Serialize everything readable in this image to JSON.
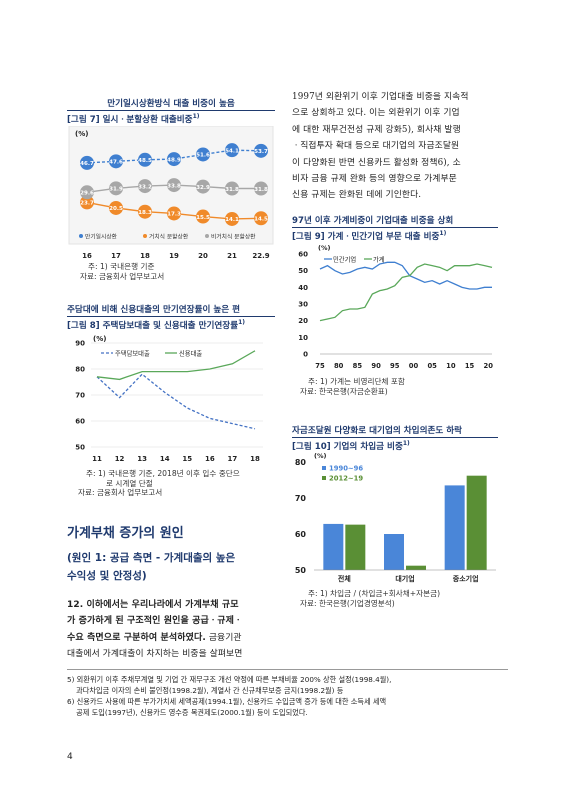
{
  "fig7": {
    "title": "만기일시상환방식 대출 비중이 높음",
    "caption": "[그림 7] 일시ㆍ분할상환 대출비중",
    "caption_sup": "1)",
    "unit": "(%)",
    "legend": [
      "만기일시상환",
      "거치식 분할상환",
      "비거치식 분할상환"
    ],
    "notes": [
      "주: 1) 국내은행 기준",
      "자료: 금융회사 업무보고서"
    ]
  },
  "fig8": {
    "title": "주담대에 비해 신용대출의 만기연장률이 높은 편",
    "caption": "[그림 8] 주택담보대출 및 신용대출 만기연장률",
    "caption_sup": "1)",
    "unit": "(%)",
    "notes": [
      "주: 1) 국내은행 기준, 2018년 이후 입수 중단으",
      "로 시계열 단절",
      "자료: 금융회사 업무보고서"
    ]
  },
  "fig9": {
    "title": "97년 이후 가계비중이 기업대출 비중을 상회",
    "caption": "[그림 9] 가계ㆍ민간기업 부문 대출 비중",
    "caption_sup": "1)",
    "unit": "(%)",
    "notes": [
      "주: 1) 가계는 비영리단체 포함",
      "자료: 한국은행(자금순환표)"
    ]
  },
  "fig10": {
    "title": "자금조달원 다양화로 대기업의 차입의존도 하락",
    "caption": "[그림 10] 기업의 차입금 비중",
    "caption_sup": "1)",
    "unit": "(%)",
    "notes": [
      "주: 1) 차입금 / (차입금+회사채+자본금)",
      "자료: 한국은행(기업경영분석)"
    ]
  },
  "right_paragraph": [
    "1997년 외환위기 이후 기업대출 비중을 지속적",
    "으로 상회하고 있다. 이는 외환위기 이후 기업",
    "에 대한 재무건전성 규제 강화5), 회사채 발행",
    "ㆍ직접투자 확대 등으로 대기업의 자금조달원",
    "이 다양화된 반면 신용카드 활성화 정책6), 소",
    "비자 금융 규제 완화 등의 영향으로 가계부문",
    "신용 규제는 완화된 데에 기인한다."
  ],
  "section": {
    "title": "가계부채 증가의 원인",
    "cause_title": [
      "(원인 1: 공급 측면 - 가계대출의 높은",
      "수익성 및 안정성)"
    ],
    "para_bold": [
      "12. 이하에서는 우리나라에서 가계부채 규모",
      "가 증가하게 된 구조적인 원인을 공급ㆍ규제ㆍ",
      "수요 측면으로 구분하여 분석하였다."
    ],
    "para_tail_first": " 금융기관",
    "para_rest": "대출에서 가계대출이 차지하는 비중을 살펴보면"
  },
  "footnotes": [
    "5) 외환위기 이후 주채무계열 및 기업 간 재무구조 개선 약정에 따른 부채비율 200% 상한 설정(1998.4월),",
    "    과다차입금 이자의 손비 불인정(1998.2월), 계열사 간 신규채무보증 금지(1998.2월) 등",
    "6) 신용카드 사용에 따른 부가가치세 세액공제(1994.1월), 신용카드 수입금액 증가 등에 대한 소득세 세액",
    "    공제 도입(1997년), 신용카드 영수증 복권제도(2000.1월) 등이 도입되었다."
  ],
  "page_number": "4",
  "colors": {
    "fig7_series": [
      "#3f7fd0",
      "#f08a2a",
      "#a7a7a7"
    ],
    "fig8_series": [
      "#4472c4",
      "#5aa85a"
    ],
    "fig9_series": [
      "#3f7fd0",
      "#5aa85a"
    ],
    "fig10_series": [
      "#4a86d8",
      "#5a8f35"
    ],
    "heading": "#1f3a6e"
  },
  "chart_data": [
    {
      "id": "fig7",
      "type": "line",
      "x": [
        "16",
        "17",
        "18",
        "19",
        "20",
        "21",
        "22.9"
      ],
      "series": [
        {
          "name": "만기일시상환",
          "values": [
            46.7,
            47.6,
            48.5,
            48.9,
            51.6,
            54.1,
            53.7
          ]
        },
        {
          "name": "거치식 분할상환",
          "values": [
            23.7,
            20.5,
            18.3,
            17.3,
            15.5,
            14.1,
            14.5
          ]
        },
        {
          "name": "비거치식 분할상환",
          "values": [
            29.6,
            31.9,
            33.2,
            33.8,
            32.9,
            31.8,
            31.8
          ]
        }
      ],
      "ylabel": "(%)",
      "legend_position": "bottom"
    },
    {
      "id": "fig8",
      "type": "line",
      "x": [
        "11",
        "12",
        "13",
        "14",
        "15",
        "16",
        "17",
        "18"
      ],
      "series": [
        {
          "name": "주택담보대출",
          "values": [
            77,
            69,
            78,
            71,
            65,
            61,
            59,
            57
          ]
        },
        {
          "name": "신용대출",
          "values": [
            77,
            76,
            79,
            79,
            79,
            80,
            82,
            87
          ]
        }
      ],
      "ylim": [
        50,
        90
      ],
      "yticks": [
        50,
        60,
        70,
        80,
        90
      ],
      "ylabel": "(%)",
      "legend_position": "top-left"
    },
    {
      "id": "fig9",
      "type": "line",
      "xticks": [
        "75",
        "80",
        "85",
        "90",
        "95",
        "00",
        "05",
        "10",
        "15",
        "20"
      ],
      "x": [
        1975,
        1977,
        1979,
        1981,
        1983,
        1985,
        1987,
        1989,
        1991,
        1993,
        1995,
        1997,
        1999,
        2001,
        2003,
        2005,
        2007,
        2009,
        2011,
        2013,
        2015,
        2017,
        2019,
        2021
      ],
      "series": [
        {
          "name": "민간기업",
          "values": [
            51,
            53,
            50,
            48,
            49,
            51,
            52,
            51,
            54,
            55,
            55,
            53,
            47,
            45,
            43,
            44,
            42,
            44,
            42,
            40,
            39,
            39,
            40,
            40
          ]
        },
        {
          "name": "가계",
          "values": [
            20,
            21,
            22,
            26,
            27,
            27,
            28,
            36,
            38,
            39,
            41,
            46,
            47,
            52,
            54,
            53,
            52,
            50,
            53,
            53,
            53,
            54,
            53,
            52
          ]
        }
      ],
      "ylim": [
        0,
        60
      ],
      "yticks": [
        0,
        10,
        20,
        30,
        40,
        50,
        60
      ],
      "ylabel": "(%)",
      "legend_position": "top-left"
    },
    {
      "id": "fig10",
      "type": "bar",
      "categories": [
        "전체",
        "대기업",
        "중소기업"
      ],
      "series": [
        {
          "name": "1990~96",
          "values": [
            62.8,
            60.0,
            73.5
          ]
        },
        {
          "name": "2012~19",
          "values": [
            62.6,
            51.2,
            76.2
          ]
        }
      ],
      "ylim": [
        50,
        80
      ],
      "yticks": [
        50,
        60,
        70,
        80
      ],
      "ylabel": "(%)",
      "legend_position": "top-left"
    }
  ]
}
